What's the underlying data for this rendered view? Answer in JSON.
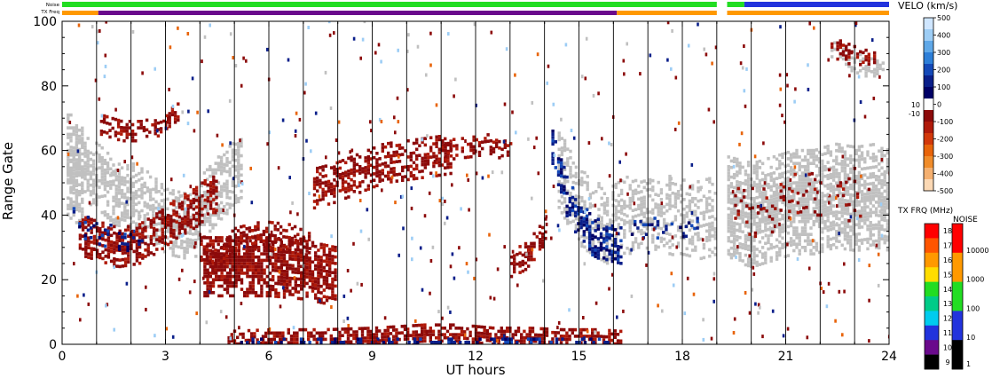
{
  "chart_data": {
    "type": "heatmap",
    "xlabel": "UT hours",
    "ylabel": "Range Gate",
    "xlim": [
      0,
      24
    ],
    "ylim": [
      0,
      100
    ],
    "x_ticks": [
      "0",
      "3",
      "6",
      "9",
      "12",
      "15",
      "18",
      "21",
      "24"
    ],
    "y_ticks": [
      "0",
      "20",
      "40",
      "60",
      "80",
      "100"
    ],
    "top_strips": {
      "noise_label": "Noise",
      "txfreq_label": "TX Freq",
      "data_gap_hours": [
        19.0,
        19.3
      ],
      "txfreq_segments": [
        {
          "start": 0.0,
          "end": 1.05,
          "color": "#ff9900"
        },
        {
          "start": 1.05,
          "end": 16.1,
          "color": "#6a0a8c"
        },
        {
          "start": 16.1,
          "end": 19.0,
          "color": "#ff9900"
        },
        {
          "start": 19.3,
          "end": 24.0,
          "color": "#ff9900"
        }
      ],
      "noise_segments": [
        {
          "start": 0.0,
          "end": 12.0,
          "color": "#22dd22"
        },
        {
          "start": 12.0,
          "end": 19.0,
          "color": "#22dd22"
        },
        {
          "start": 19.3,
          "end": 19.8,
          "color": "#22dd22"
        },
        {
          "start": 19.8,
          "end": 24.0,
          "color": "#2233dd"
        }
      ]
    },
    "velocity_scale": {
      "title": "VELO (km/s)",
      "ticks": [
        "500",
        "400",
        "300",
        "200",
        "100",
        "0",
        "-100",
        "-200",
        "-300",
        "-400",
        "-500"
      ],
      "tick_values": [
        500,
        400,
        300,
        200,
        100,
        0,
        -100,
        -200,
        -300,
        -400,
        -500
      ],
      "side_ticks": [
        "10",
        "-10"
      ],
      "colors": [
        "#cfe6ff",
        "#9dcdf5",
        "#5fa8e8",
        "#2d7fd8",
        "#1449b8",
        "#0a1f8a",
        "#000066",
        "#ffffff",
        "#8c0a0a",
        "#b01a0a",
        "#d2380a",
        "#e8640a",
        "#f08c2a",
        "#f5b070",
        "#fbd8b4"
      ]
    },
    "txfreq_scale": {
      "title": "TX FRQ (MHz)",
      "ticks": [
        "18",
        "17",
        "16",
        "15",
        "14",
        "13",
        "12",
        "11",
        "10",
        "9"
      ],
      "colors": [
        "#ff0000",
        "#ff5500",
        "#ff9900",
        "#ffdd00",
        "#22dd22",
        "#00cc88",
        "#00ccee",
        "#2233dd",
        "#6a0a8c",
        "#000000"
      ]
    },
    "noise_scale": {
      "title": "NOISE",
      "ticks": [
        "10000",
        "1000",
        "100",
        "10",
        "1"
      ],
      "colors": [
        "#ff0000",
        "#ff9900",
        "#22dd22",
        "#2233dd",
        "#000000"
      ]
    },
    "ground_scatter_color": "#c0c0c0",
    "regions": [
      {
        "name": "ground-scatter-early",
        "type": "gs",
        "points": [
          [
            0.05,
            48
          ],
          [
            0.5,
            55
          ],
          [
            1.0,
            52
          ],
          [
            1.5,
            47
          ],
          [
            2.0,
            46
          ],
          [
            2.5,
            43
          ],
          [
            3.0,
            38
          ],
          [
            3.4,
            37
          ],
          [
            3.8,
            36
          ],
          [
            4.0,
            42
          ],
          [
            4.5,
            48
          ],
          [
            5.0,
            53
          ],
          [
            5.2,
            56
          ]
        ],
        "thickness": 10,
        "density": 0.7
      },
      {
        "name": "ground-scatter-left-edge",
        "type": "gs",
        "points": [
          [
            0.05,
            55
          ],
          [
            0.3,
            55
          ],
          [
            0.6,
            50
          ]
        ],
        "thickness": 16,
        "density": 0.75
      },
      {
        "name": "ground-scatter-midday",
        "type": "gs",
        "points": [
          [
            14.3,
            56
          ],
          [
            14.8,
            46
          ],
          [
            15.2,
            40
          ],
          [
            15.8,
            36
          ],
          [
            16.4,
            40
          ],
          [
            17.0,
            42
          ],
          [
            17.6,
            40
          ],
          [
            18.3,
            38
          ],
          [
            19.0,
            40
          ]
        ],
        "thickness": 12,
        "density": 0.55
      },
      {
        "name": "ground-scatter-evening",
        "type": "gs",
        "points": [
          [
            19.3,
            42
          ],
          [
            20.0,
            40
          ],
          [
            20.6,
            42
          ],
          [
            21.2,
            44
          ],
          [
            21.8,
            44
          ],
          [
            22.4,
            46
          ],
          [
            23.0,
            45
          ],
          [
            23.6,
            46
          ],
          [
            24.0,
            45
          ]
        ],
        "thickness": 16,
        "density": 0.8
      },
      {
        "name": "ground-scatter-late-top",
        "type": "gs",
        "points": [
          [
            22.3,
            92
          ],
          [
            22.8,
            88
          ],
          [
            23.3,
            86
          ],
          [
            23.8,
            84
          ]
        ],
        "thickness": 3,
        "density": 0.5
      },
      {
        "name": "negative-velocity-upper-branch",
        "type": "neg",
        "points": [
          [
            1.1,
            68
          ],
          [
            1.7,
            66
          ],
          [
            2.3,
            66
          ],
          [
            2.9,
            68
          ],
          [
            3.4,
            72
          ]
        ],
        "thickness": 3,
        "density": 0.6
      },
      {
        "name": "negative-velocity-lower-branch",
        "type": "neg",
        "points": [
          [
            0.4,
            34
          ],
          [
            1.0,
            32
          ],
          [
            1.6,
            30
          ],
          [
            2.2,
            31
          ],
          [
            2.8,
            35
          ],
          [
            3.3,
            39
          ],
          [
            3.8,
            42
          ],
          [
            4.5,
            48
          ]
        ],
        "thickness": 6,
        "density": 0.7
      },
      {
        "name": "negative-velocity-morning-patch",
        "type": "neg",
        "points": [
          [
            4.1,
            24
          ],
          [
            5.0,
            24
          ],
          [
            6.0,
            24
          ],
          [
            7.0,
            23
          ],
          [
            7.9,
            21
          ]
        ],
        "thickness": 9,
        "density": 0.85
      },
      {
        "name": "negative-velocity-morning-branch",
        "type": "neg",
        "points": [
          [
            4.0,
            30
          ],
          [
            4.4,
            26
          ],
          [
            5.0,
            32
          ],
          [
            5.8,
            34
          ],
          [
            6.6,
            33
          ],
          [
            7.2,
            30
          ]
        ],
        "thickness": 4,
        "density": 0.6
      },
      {
        "name": "negative-velocity-arc-9",
        "type": "neg",
        "points": [
          [
            7.2,
            48
          ],
          [
            7.9,
            50
          ],
          [
            8.6,
            53
          ],
          [
            9.3,
            56
          ],
          [
            10.0,
            57
          ],
          [
            10.7,
            58
          ],
          [
            11.3,
            59
          ]
        ],
        "thickness": 6,
        "density": 0.6
      },
      {
        "name": "negative-velocity-arc-12",
        "type": "neg",
        "points": [
          [
            11.0,
            60
          ],
          [
            11.8,
            61
          ],
          [
            12.4,
            62
          ],
          [
            13.0,
            59
          ]
        ],
        "thickness": 3,
        "density": 0.5
      },
      {
        "name": "negative-velocity-near-range",
        "type": "neg",
        "points": [
          [
            4.8,
            1
          ],
          [
            6.0,
            1.5
          ],
          [
            7.5,
            1.5
          ],
          [
            9.0,
            2
          ],
          [
            10.5,
            3
          ],
          [
            11.5,
            3
          ],
          [
            12.5,
            2
          ],
          [
            13.5,
            2
          ],
          [
            14.5,
            1.5
          ],
          [
            15.5,
            1.5
          ],
          [
            16.2,
            1
          ]
        ],
        "thickness": 3,
        "density": 0.7
      },
      {
        "name": "negative-velocity-14h",
        "type": "neg",
        "points": [
          [
            13.0,
            25
          ],
          [
            13.4,
            27
          ],
          [
            13.8,
            32
          ],
          [
            14.0,
            36
          ]
        ],
        "thickness": 4,
        "density": 0.7
      },
      {
        "name": "negative-velocity-evening",
        "type": "neg",
        "points": [
          [
            19.5,
            40
          ],
          [
            20.3,
            42
          ],
          [
            21.0,
            44
          ],
          [
            21.8,
            46
          ],
          [
            22.6,
            46
          ],
          [
            23.4,
            47
          ]
        ],
        "thickness": 8,
        "density": 0.12
      },
      {
        "name": "negative-velocity-late-top",
        "type": "neg",
        "points": [
          [
            22.3,
            92
          ],
          [
            23.0,
            89
          ],
          [
            23.6,
            87
          ]
        ],
        "thickness": 3,
        "density": 0.35
      },
      {
        "name": "positive-velocity-14h",
        "type": "pos",
        "points": [
          [
            14.2,
            62
          ],
          [
            14.4,
            54
          ],
          [
            14.6,
            46
          ],
          [
            14.9,
            40
          ],
          [
            15.3,
            34
          ],
          [
            15.8,
            31
          ],
          [
            16.2,
            30
          ]
        ],
        "thickness": 6,
        "density": 0.6
      },
      {
        "name": "positive-velocity-near-range",
        "type": "pos",
        "points": [
          [
            5.0,
            0.6
          ],
          [
            7.0,
            0.6
          ],
          [
            9.0,
            0.6
          ],
          [
            11.0,
            0.6
          ],
          [
            13.0,
            0.6
          ],
          [
            15.0,
            0.6
          ],
          [
            16.0,
            0.6
          ]
        ],
        "thickness": 1,
        "density": 0.35
      },
      {
        "name": "positive-velocity-early",
        "type": "pos",
        "points": [
          [
            0.3,
            38
          ],
          [
            0.8,
            36
          ],
          [
            1.3,
            34
          ],
          [
            1.8,
            33
          ],
          [
            2.3,
            33
          ]
        ],
        "thickness": 4,
        "density": 0.15
      },
      {
        "name": "positive-velocity-evening",
        "type": "pos",
        "points": [
          [
            16.5,
            36
          ],
          [
            17.2,
            36
          ],
          [
            17.8,
            35
          ],
          [
            18.4,
            36
          ]
        ],
        "thickness": 3,
        "density": 0.25
      }
    ]
  }
}
